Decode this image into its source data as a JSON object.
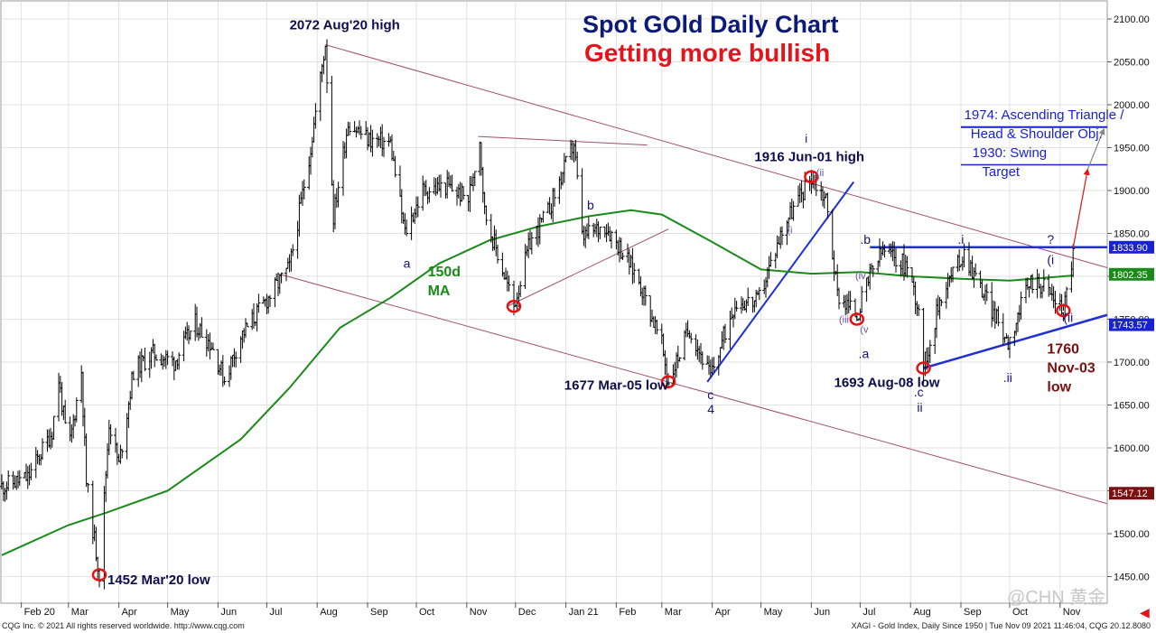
{
  "title": "Spot GOld Daily Chart",
  "subtitle": "Getting more bullish",
  "footer": {
    "left": "CQG Inc. © 2021 All rights reserved worldwide. http://www.cqg.com",
    "right": "XAGI - Gold Index, Daily  Since 1950 | Tue Nov 09 2021 11:46:04, CQG 20.12.8080"
  },
  "watermark": "@CHN 黄金",
  "colors": {
    "price": "#000000",
    "ma": "#1a8a1a",
    "channel": "#a0506e",
    "trend": "#1f2fd6",
    "target": "#1a22d0",
    "projection": "#e81010",
    "marker": "#e81010",
    "label_dark": "#0d0d4d",
    "label_wave": "#12127a",
    "label_green": "#1a8a1a",
    "label_maroon": "#7a1010"
  },
  "chart_data": {
    "type": "candlestick",
    "title": "Spot GOld Daily Chart",
    "subtitle": "Getting more bullish",
    "y_axis": {
      "min": 1420,
      "max": 2120,
      "ticks": [
        1450,
        1500,
        1550,
        1600,
        1650,
        1700,
        1750,
        1800,
        1850,
        1900,
        1950,
        2000,
        2050,
        2100
      ],
      "tick_format": "0.00",
      "side": "right"
    },
    "x_axis": {
      "start": "2020-01-20",
      "end": "2021-11-30",
      "month_labels": [
        "Feb 20",
        "Mar",
        "Apr",
        "May",
        "Jun",
        "Jul",
        "Aug",
        "Sep",
        "Oct",
        "Nov",
        "Dec",
        "Jan 21",
        "Feb",
        "Mar",
        "Apr",
        "May",
        "Jun",
        "Jul",
        "Aug",
        "Sep",
        "Oct",
        "Nov"
      ]
    },
    "price_path": [
      [
        "2020-01-20",
        1555
      ],
      [
        "2020-02-05",
        1565
      ],
      [
        "2020-02-20",
        1620
      ],
      [
        "2020-02-24",
        1680
      ],
      [
        "2020-03-01",
        1595
      ],
      [
        "2020-03-09",
        1690
      ],
      [
        "2020-03-12",
        1560
      ],
      [
        "2020-03-20",
        1452
      ],
      [
        "2020-03-26",
        1630
      ],
      [
        "2020-04-01",
        1580
      ],
      [
        "2020-04-10",
        1690
      ],
      [
        "2020-04-22",
        1710
      ],
      [
        "2020-05-05",
        1700
      ],
      [
        "2020-05-18",
        1745
      ],
      [
        "2020-05-28",
        1720
      ],
      [
        "2020-06-05",
        1680
      ],
      [
        "2020-06-15",
        1730
      ],
      [
        "2020-06-30",
        1770
      ],
      [
        "2020-07-15",
        1810
      ],
      [
        "2020-07-28",
        1950
      ],
      [
        "2020-08-06",
        2072
      ],
      [
        "2020-08-11",
        1870
      ],
      [
        "2020-08-20",
        1980
      ],
      [
        "2020-09-01",
        1960
      ],
      [
        "2020-09-15",
        1955
      ],
      [
        "2020-09-24",
        1850
      ],
      [
        "2020-10-05",
        1900
      ],
      [
        "2020-10-20",
        1905
      ],
      [
        "2020-11-02",
        1890
      ],
      [
        "2020-11-09",
        1960
      ],
      [
        "2020-11-12",
        1875
      ],
      [
        "2020-11-30",
        1765
      ],
      [
        "2020-12-10",
        1840
      ],
      [
        "2020-12-21",
        1875
      ],
      [
        "2021-01-06",
        1955
      ],
      [
        "2021-01-11",
        1845
      ],
      [
        "2021-01-25",
        1860
      ],
      [
        "2021-02-03",
        1835
      ],
      [
        "2021-02-15",
        1795
      ],
      [
        "2021-03-01",
        1720
      ],
      [
        "2021-03-05",
        1677
      ],
      [
        "2021-03-18",
        1740
      ],
      [
        "2021-03-31",
        1683
      ],
      [
        "2021-04-15",
        1770
      ],
      [
        "2021-04-29",
        1770
      ],
      [
        "2021-05-15",
        1860
      ],
      [
        "2021-06-01",
        1916
      ],
      [
        "2021-06-10",
        1890
      ],
      [
        "2021-06-17",
        1780
      ],
      [
        "2021-06-29",
        1755
      ],
      [
        "2021-07-08",
        1805
      ],
      [
        "2021-07-15",
        1830
      ],
      [
        "2021-07-30",
        1812
      ],
      [
        "2021-08-06",
        1763
      ],
      [
        "2021-08-09",
        1693
      ],
      [
        "2021-08-20",
        1780
      ],
      [
        "2021-09-03",
        1828
      ],
      [
        "2021-09-15",
        1780
      ],
      [
        "2021-09-30",
        1724
      ],
      [
        "2021-10-14",
        1795
      ],
      [
        "2021-10-22",
        1790
      ],
      [
        "2021-11-03",
        1760
      ],
      [
        "2021-11-09",
        1828
      ]
    ],
    "ma_150d_path": [
      [
        "2020-01-20",
        1475
      ],
      [
        "2020-03-01",
        1510
      ],
      [
        "2020-03-25",
        1525
      ],
      [
        "2020-05-01",
        1550
      ],
      [
        "2020-06-15",
        1610
      ],
      [
        "2020-07-15",
        1670
      ],
      [
        "2020-08-15",
        1740
      ],
      [
        "2020-09-15",
        1775
      ],
      [
        "2020-10-15",
        1815
      ],
      [
        "2020-11-15",
        1842
      ],
      [
        "2020-12-15",
        1858
      ],
      [
        "2021-01-15",
        1870
      ],
      [
        "2021-02-10",
        1877
      ],
      [
        "2021-03-01",
        1872
      ],
      [
        "2021-04-01",
        1840
      ],
      [
        "2021-05-01",
        1808
      ],
      [
        "2021-06-01",
        1803
      ],
      [
        "2021-07-01",
        1805
      ],
      [
        "2021-08-01",
        1800
      ],
      [
        "2021-09-01",
        1797
      ],
      [
        "2021-10-01",
        1795
      ],
      [
        "2021-11-09",
        1801
      ]
    ],
    "price_boxes": [
      {
        "value": "1833.90",
        "y": 1833.9,
        "bg": "#1a22d0",
        "fg": "#ffffff"
      },
      {
        "value": "1802.35",
        "y": 1802.35,
        "bg": "#1a8a1a",
        "fg": "#ffffff"
      },
      {
        "value": "1743.57",
        "y": 1743.57,
        "bg": "#1a22d0",
        "fg": "#ffffff"
      },
      {
        "value": "1547.12",
        "y": 1547.12,
        "bg": "#7a1010",
        "fg": "#ffffff"
      }
    ],
    "lines": [
      {
        "name": "channel-upper",
        "color": "#a0506e",
        "width": 1,
        "points": [
          [
            "2020-08-06",
            2070
          ],
          [
            "2021-11-30",
            1810
          ]
        ]
      },
      {
        "name": "channel-lower",
        "color": "#a0506e",
        "width": 1,
        "points": [
          [
            "2020-07-08",
            1803
          ],
          [
            "2021-11-30",
            1535
          ]
        ]
      },
      {
        "name": "triangle-top",
        "color": "#a0506e",
        "width": 1,
        "points": [
          [
            "2020-11-08",
            1963
          ],
          [
            "2021-02-20",
            1953
          ]
        ]
      },
      {
        "name": "corrective-channel",
        "color": "#a0506e",
        "width": 1,
        "points": [
          [
            "2020-11-26",
            1765
          ],
          [
            "2021-03-05",
            1855
          ]
        ]
      },
      {
        "name": "wave-4-trend",
        "color": "#1f2fd6",
        "width": 2,
        "points": [
          [
            "2021-03-29",
            1677
          ],
          [
            "2021-06-27",
            1910
          ]
        ]
      },
      {
        "name": "resistance-1834",
        "color": "#1f2fd6",
        "width": 2.5,
        "points": [
          [
            "2021-07-07",
            1834
          ],
          [
            "2021-11-30",
            1834
          ]
        ]
      },
      {
        "name": "triangle-support",
        "color": "#1f2fd6",
        "width": 2.5,
        "points": [
          [
            "2021-08-09",
            1693
          ],
          [
            "2021-11-30",
            1755
          ]
        ]
      },
      {
        "name": "target-1974",
        "color": "#1a22d0",
        "width": 2,
        "points": [
          [
            "2021-09-01",
            1974
          ],
          [
            "2021-11-30",
            1974
          ]
        ]
      },
      {
        "name": "target-1930",
        "color": "#1a22d0",
        "width": 1.5,
        "points": [
          [
            "2021-09-01",
            1930
          ],
          [
            "2021-11-30",
            1930
          ]
        ]
      }
    ],
    "arrows": [
      {
        "color": "#e81010",
        "from": [
          "2021-11-09",
          1833
        ],
        "to": [
          "2021-11-18",
          1925
        ]
      },
      {
        "color": "#888888",
        "from": [
          "2021-11-18",
          1925
        ],
        "to": [
          "2021-11-28",
          1972
        ]
      }
    ],
    "markers": [
      {
        "date": "2020-03-20",
        "y": 1452
      },
      {
        "date": "2020-11-30",
        "y": 1765
      },
      {
        "date": "2021-03-05",
        "y": 1677
      },
      {
        "date": "2021-06-01",
        "y": 1916
      },
      {
        "date": "2021-06-29",
        "y": 1750
      },
      {
        "date": "2021-08-09",
        "y": 1693
      },
      {
        "date": "2021-11-03",
        "y": 1760
      }
    ],
    "annotations": [
      {
        "text": "2072 Aug'20 high",
        "date": "2020-07-15",
        "y": 2088,
        "color": "#0d0d4d",
        "size": 15,
        "bold": true
      },
      {
        "text": "1452 Mar'20 low",
        "date": "2020-03-25",
        "y": 1441,
        "color": "#0d0d4d",
        "size": 15,
        "bold": true
      },
      {
        "text": "1677 Mar-05 low",
        "date": "2020-12-31",
        "y": 1668,
        "color": "#0d0d4d",
        "size": 15,
        "bold": true
      },
      {
        "text": "1916 Jun-01 high",
        "date": "2021-04-27",
        "y": 1934,
        "color": "#0d0d4d",
        "size": 15,
        "bold": true
      },
      {
        "text": "1693 Aug-08 low",
        "date": "2021-06-15",
        "y": 1671,
        "color": "#0d0d4d",
        "size": 15,
        "bold": true
      },
      {
        "text": "1760",
        "date": "2021-10-24",
        "y": 1710,
        "color": "#7a1010",
        "size": 16,
        "bold": true
      },
      {
        "text": "Nov-03",
        "date": "2021-10-24",
        "y": 1688,
        "color": "#7a1010",
        "size": 16,
        "bold": true
      },
      {
        "text": "low",
        "date": "2021-10-24",
        "y": 1666,
        "color": "#7a1010",
        "size": 16,
        "bold": true
      },
      {
        "text": "150d",
        "date": "2020-10-08",
        "y": 1800,
        "color": "#1a8a1a",
        "size": 16,
        "bold": true
      },
      {
        "text": "MA",
        "date": "2020-10-08",
        "y": 1778,
        "color": "#1a8a1a",
        "size": 16,
        "bold": true
      },
      {
        "text": "1974: Ascending Triangle /",
        "date": "2021-09-03",
        "y": 1983,
        "color": "#1a22d0",
        "size": 15,
        "bold": false
      },
      {
        "text": "Head & Shoulder Obj.",
        "date": "2021-09-07",
        "y": 1961,
        "color": "#1a22d0",
        "size": 15,
        "bold": false
      },
      {
        "text": "1930: Swing",
        "date": "2021-09-08",
        "y": 1939,
        "color": "#1a22d0",
        "size": 15,
        "bold": false
      },
      {
        "text": "Target",
        "date": "2021-09-14",
        "y": 1917,
        "color": "#1a22d0",
        "size": 15,
        "bold": false
      },
      {
        "text": "a",
        "date": "2020-09-23",
        "y": 1810,
        "color": "#12127a",
        "size": 14,
        "bold": false
      },
      {
        "text": "b",
        "date": "2021-01-14",
        "y": 1878,
        "color": "#12127a",
        "size": 14,
        "bold": false
      },
      {
        "text": "c",
        "date": "2021-03-29",
        "y": 1657,
        "color": "#12127a",
        "size": 14,
        "bold": false
      },
      {
        "text": "4",
        "date": "2021-03-29",
        "y": 1640,
        "color": "#12127a",
        "size": 14,
        "bold": false
      },
      {
        "text": "i",
        "date": "2021-05-28",
        "y": 1956,
        "color": "#12127a",
        "size": 13,
        "bold": false
      },
      {
        "text": "(ii",
        "date": "2021-06-04",
        "y": 1917,
        "color": "#6a4fa0",
        "size": 11,
        "bold": false
      },
      {
        "text": "(i",
        "date": "2021-05-17",
        "y": 1850,
        "color": "#6a4fa0",
        "size": 11,
        "bold": false
      },
      {
        "text": "(iii",
        "date": "2021-06-18",
        "y": 1746,
        "color": "#6a4fa0",
        "size": 11,
        "bold": false
      },
      {
        "text": "(iv",
        "date": "2021-06-28",
        "y": 1797,
        "color": "#6a4fa0",
        "size": 11,
        "bold": false
      },
      {
        "text": "(v",
        "date": "2021-07-01",
        "y": 1734,
        "color": "#6a4fa0",
        "size": 11,
        "bold": false
      },
      {
        "text": ".a",
        "date": "2021-06-30",
        "y": 1705,
        "color": "#12127a",
        "size": 14,
        "bold": false
      },
      {
        "text": ".b",
        "date": "2021-07-01",
        "y": 1838,
        "color": "#12127a",
        "size": 14,
        "bold": false
      },
      {
        "text": ".c",
        "date": "2021-08-03",
        "y": 1660,
        "color": "#12127a",
        "size": 14,
        "bold": false
      },
      {
        "text": "ii",
        "date": "2021-08-05",
        "y": 1642,
        "color": "#12127a",
        "size": 14,
        "bold": false
      },
      {
        "text": ".i",
        "date": "2021-08-30",
        "y": 1838,
        "color": "#12127a",
        "size": 14,
        "bold": false
      },
      {
        "text": ".ii",
        "date": "2021-09-27",
        "y": 1677,
        "color": "#12127a",
        "size": 14,
        "bold": false
      },
      {
        "text": "?",
        "date": "2021-10-24",
        "y": 1838,
        "color": "#12127a",
        "size": 14,
        "bold": false
      },
      {
        "text": "(i",
        "date": "2021-10-24",
        "y": 1814,
        "color": "#12127a",
        "size": 14,
        "bold": false
      },
      {
        "text": "(ii",
        "date": "2021-11-03",
        "y": 1747,
        "color": "#12127a",
        "size": 14,
        "bold": false
      }
    ]
  }
}
